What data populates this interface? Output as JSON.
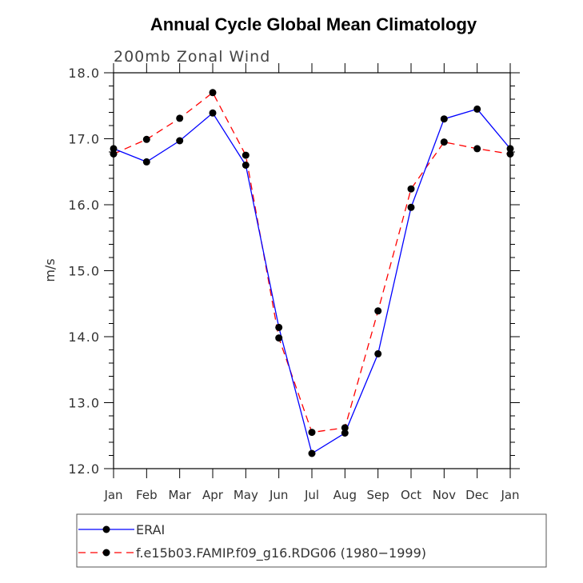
{
  "chart_data": {
    "type": "line",
    "title": "Annual Cycle Global Mean Climatology",
    "subtitle": "200mb Zonal Wind",
    "ylabel": "m/s",
    "xlabel": "",
    "ylim": [
      12.0,
      18.0
    ],
    "yticks": [
      "12.0",
      "13.0",
      "14.0",
      "15.0",
      "16.0",
      "17.0",
      "18.0"
    ],
    "categories": [
      "Jan",
      "Feb",
      "Mar",
      "Apr",
      "May",
      "Jun",
      "Jul",
      "Aug",
      "Sep",
      "Oct",
      "Nov",
      "Dec",
      "Jan"
    ],
    "grid": false,
    "legend_position": "bottom",
    "series": [
      {
        "name": "ERAI",
        "color": "#0000ff",
        "dash": "solid",
        "values": [
          16.85,
          16.65,
          16.97,
          17.39,
          16.6,
          14.14,
          12.23,
          12.54,
          13.74,
          15.96,
          17.3,
          17.45,
          16.85
        ]
      },
      {
        "name": "f.e15b03.FAMIP.f09_g16.RDG06 (1980−1999)",
        "color": "#ff0000",
        "dash": "dashed",
        "values": [
          16.77,
          16.99,
          17.31,
          17.7,
          16.75,
          13.98,
          12.55,
          12.62,
          14.39,
          16.24,
          16.95,
          16.85,
          16.77
        ]
      }
    ]
  }
}
